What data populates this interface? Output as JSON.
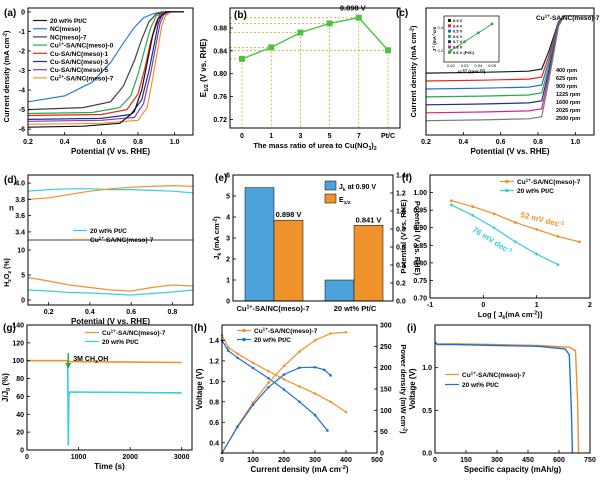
{
  "chart_data": [
    {
      "panel": "(a)",
      "type": "line",
      "xlabel": "Potential (V vs. RHE)",
      "ylabel": "Current density (mA cm",
      "ylabel_sup": "-2",
      "ylabel_tail": ")",
      "xlim": [
        0.2,
        1.1
      ],
      "ylim": [
        -6.3,
        0.2
      ],
      "xticks": [
        "0.2",
        "0.4",
        "0.6",
        "0.8",
        "1.0"
      ],
      "yticks": [
        "0",
        "-1",
        "-2",
        "-3",
        "-4",
        "-5",
        "-6"
      ],
      "legend": [
        {
          "name": "20 wt% Pt/C",
          "color": "#111111"
        },
        {
          "name": "NC(meso)",
          "color": "#2e7fd9"
        },
        {
          "name": "NC(meso)-7",
          "color": "#3f3f3f"
        },
        {
          "name": "Cu",
          "sup": "1+",
          "tail": "-SA/NC(meso)-0",
          "color": "#2aa84a"
        },
        {
          "name": "Cu-SA/NC(meso)-1",
          "color": "#e0281f"
        },
        {
          "name": "Cu-SA/NC(meso)-3",
          "color": "#1c2f8a"
        },
        {
          "name": "Cu-SA/NC(meso)-5",
          "color": "#8a3aa8"
        },
        {
          "name": "Cu",
          "sup": "1+",
          "tail": "-SA/NC(meso)-7",
          "color": "#f0922b"
        }
      ],
      "series": [
        {
          "color": "#2e7fd9",
          "x": [
            0.2,
            0.4,
            0.55,
            0.65,
            0.72,
            0.78,
            0.83,
            0.88,
            0.93,
            1.0,
            1.05
          ],
          "y": [
            -4.6,
            -4.3,
            -3.6,
            -2.6,
            -1.6,
            -0.8,
            -0.3,
            -0.1,
            0,
            0,
            0
          ]
        },
        {
          "color": "#3f3f3f",
          "x": [
            0.2,
            0.5,
            0.65,
            0.72,
            0.78,
            0.82,
            0.86,
            0.9,
            0.95,
            1.05
          ],
          "y": [
            -5.0,
            -4.9,
            -4.6,
            -3.8,
            -2.5,
            -1.4,
            -0.5,
            -0.1,
            0,
            0
          ]
        },
        {
          "color": "#2aa84a",
          "x": [
            0.2,
            0.55,
            0.7,
            0.76,
            0.8,
            0.84,
            0.87,
            0.9,
            0.95,
            1.05
          ],
          "y": [
            -5.2,
            -5.15,
            -4.9,
            -4.3,
            -3.2,
            -1.8,
            -0.8,
            -0.2,
            0,
            0
          ]
        },
        {
          "color": "#e0281f",
          "x": [
            0.2,
            0.6,
            0.74,
            0.8,
            0.84,
            0.87,
            0.9,
            0.92,
            0.96,
            1.05
          ],
          "y": [
            -5.3,
            -5.25,
            -5.0,
            -4.2,
            -2.8,
            -1.5,
            -0.5,
            -0.15,
            0,
            0
          ]
        },
        {
          "color": "#1c2f8a",
          "x": [
            0.2,
            0.6,
            0.76,
            0.82,
            0.86,
            0.89,
            0.91,
            0.93,
            0.97,
            1.05
          ],
          "y": [
            -5.5,
            -5.45,
            -5.25,
            -4.5,
            -3.0,
            -1.6,
            -0.6,
            -0.15,
            0,
            0
          ]
        },
        {
          "color": "#8a3aa8",
          "x": [
            0.2,
            0.6,
            0.78,
            0.83,
            0.87,
            0.9,
            0.92,
            0.94,
            0.97,
            1.05
          ],
          "y": [
            -5.6,
            -5.55,
            -5.4,
            -4.7,
            -3.1,
            -1.6,
            -0.6,
            -0.15,
            0,
            0
          ]
        },
        {
          "color": "#f0922b",
          "x": [
            0.2,
            0.6,
            0.8,
            0.85,
            0.88,
            0.91,
            0.93,
            0.95,
            0.98,
            1.05
          ],
          "y": [
            -5.75,
            -5.7,
            -5.55,
            -4.9,
            -3.4,
            -1.8,
            -0.7,
            -0.2,
            0,
            0
          ]
        },
        {
          "color": "#111111",
          "x": [
            0.2,
            0.5,
            0.7,
            0.78,
            0.82,
            0.85,
            0.88,
            0.91,
            0.95,
            1.05
          ],
          "y": [
            -5.9,
            -5.85,
            -5.7,
            -5.1,
            -4.0,
            -2.6,
            -1.2,
            -0.35,
            0,
            0
          ]
        }
      ]
    },
    {
      "panel": "(b)",
      "type": "line",
      "ylabel": "E",
      "ylabel_sub": "1/2",
      "ylabel_tail": " (V vs. RHE)",
      "xlabel": "The mass ratio of urea to Cu(NO",
      "xlabel_sub": "3",
      "xlabel_tail": ")",
      "xlabel_sub2": "2",
      "categories": [
        "0",
        "1",
        "3",
        "5",
        "7",
        "Pt/C"
      ],
      "values": [
        0.826,
        0.846,
        0.872,
        0.888,
        0.898,
        0.841
      ],
      "ylim": [
        0.705,
        0.915
      ],
      "yticks": [
        "0.72",
        "0.76",
        "0.80",
        "0.84",
        "0.88"
      ],
      "annotation": "0.898 V",
      "color": "#4cc43c"
    },
    {
      "panel": "(c)",
      "type": "line",
      "xlabel": "Potential (V vs. RHE)",
      "ylabel": "Current density (mA cm",
      "ylabel_sup": "-2",
      "ylabel_tail": ")",
      "xlim": [
        0.2,
        1.1
      ],
      "ylim": [
        -7.5,
        0.5
      ],
      "xticks": [
        "0.2",
        "0.4",
        "0.6",
        "0.8",
        "1.0"
      ],
      "title": "Cu",
      "title_sup": "1+",
      "title_tail": "-SA/NC(meso)-7",
      "rpm_labels": [
        "400 rpm",
        "625 rpm",
        "900 rpm",
        "1225 rpm",
        "1600 rpm",
        "2025 rpm",
        "2500 rpm"
      ],
      "plateaus": [
        -3.6,
        -4.1,
        -4.6,
        -5.1,
        -5.6,
        -6.1,
        -6.6
      ],
      "colors": [
        "#1a1a1a",
        "#e0281f",
        "#1f6fd1",
        "#2aa84a",
        "#1c2f8a",
        "#d02a8a",
        "#7a7a7a"
      ],
      "inset": {
        "xlabel": "ω",
        "xlabel_sup": "-1/2",
        "xlabel_tail": " (rpm",
        "xlabel_sup2": "-1/2",
        "xlabel_tail2": ")",
        "ylabel": "J",
        "ylabel_sup": "-1",
        "ylabel_tail": " (mA",
        "ylabel_sup2": "-1",
        "ylabel_tail2": "cm",
        "xticks": [
          "0.02",
          "0.03",
          "0.04",
          "0.05"
        ],
        "yticks": [
          "0.2",
          "0.4"
        ],
        "legend": [
          "0.3 V",
          "0.4 V",
          "0.5 V",
          "0.6 V",
          "0.7 V",
          "0.8 V",
          "0.6 V (Pt/C)"
        ]
      }
    },
    {
      "panel": "(d)",
      "type": "line",
      "xlabel": "Potential (V vs. RHE)",
      "ylabel_top": "n",
      "ylabel_bottom": "H",
      "ylabel_bottom_sub": "2",
      "ylabel_bottom_mid": "O",
      "ylabel_bottom_sub2": "2",
      "ylabel_bottom_tail": " (%)",
      "xticks": [
        "0.2",
        "0.4",
        "0.6",
        "0.8"
      ],
      "yticks_top": [
        "4.0",
        "3.8",
        "3.6",
        "3.4"
      ],
      "yticks_bottom": [
        "10",
        "5",
        "0"
      ],
      "xlim": [
        0.1,
        0.9
      ],
      "top_ylim": [
        3.3,
        4.1
      ],
      "bottom_ylim": [
        -1,
        12
      ],
      "legend": [
        {
          "name": "20 wt% Pt/C",
          "color": "#34d0dc"
        },
        {
          "name": "Cu",
          "sup": "1+",
          "tail": "-SA/NC(meso)-7",
          "color": "#f0922b"
        }
      ],
      "n_pt": {
        "x": [
          0.1,
          0.2,
          0.3,
          0.4,
          0.5,
          0.6,
          0.7,
          0.8,
          0.9
        ],
        "y": [
          3.9,
          3.92,
          3.93,
          3.93,
          3.92,
          3.92,
          3.91,
          3.9,
          3.88
        ]
      },
      "n_cu": {
        "x": [
          0.1,
          0.2,
          0.3,
          0.4,
          0.5,
          0.6,
          0.7,
          0.8,
          0.9
        ],
        "y": [
          3.8,
          3.82,
          3.86,
          3.9,
          3.93,
          3.95,
          3.96,
          3.97,
          3.96
        ]
      },
      "h_pt": {
        "x": [
          0.1,
          0.2,
          0.3,
          0.4,
          0.5,
          0.6,
          0.7,
          0.8,
          0.9
        ],
        "y": [
          2.0,
          1.8,
          1.5,
          1.4,
          1.2,
          1.0,
          1.3,
          1.6,
          2.0
        ]
      },
      "h_cu": {
        "x": [
          0.1,
          0.2,
          0.3,
          0.4,
          0.5,
          0.6,
          0.7,
          0.8,
          0.9
        ],
        "y": [
          4.5,
          3.8,
          3.0,
          2.5,
          2.0,
          1.8,
          2.5,
          3.0,
          2.8
        ]
      }
    },
    {
      "panel": "(e)",
      "type": "bar",
      "categories": [
        "Cu",
        "20 wt% Pt/C"
      ],
      "category_sup": "1+",
      "category_tail": "-SA/NC(meso)-7",
      "series": [
        {
          "name": "J",
          "name_sub": "k",
          "name_tail": " at 0.90 V",
          "color": "#4da3d9",
          "values": [
            5.4,
            1.0
          ]
        },
        {
          "name": "E",
          "name_sub": "1/2",
          "color": "#f0922b",
          "values": [
            0.898,
            0.841
          ]
        }
      ],
      "ylabel_left": "J",
      "ylabel_left_sub": "k",
      "ylabel_left_tail": " (mA cm",
      "ylabel_left_sup": "-2",
      "ylabel_left_tail2": ")",
      "ylabel_right": "Potential (V vs. RHE)",
      "ylim_left": [
        0,
        6
      ],
      "ylim_right": [
        0,
        1.4
      ],
      "yticks_left": [
        "0",
        "1",
        "2",
        "3",
        "4",
        "5",
        "6"
      ],
      "yticks_right": [
        "0.0",
        "0.2",
        "0.4",
        "0.6",
        "0.8",
        "1.0",
        "1.2",
        "1.4"
      ],
      "annotations": [
        "0.898 V",
        "0.841 V"
      ]
    },
    {
      "panel": "(f)",
      "type": "line",
      "xlabel": "Log [ J",
      "xlabel_sub": "k",
      "xlabel_tail": "(mA cm",
      "xlabel_sup": "-2",
      "xlabel_tail2": ")]",
      "ylabel": "Potential (V vs. RHE)",
      "xlim": [
        -1,
        2
      ],
      "ylim": [
        0.7,
        1.05
      ],
      "xticks": [
        "-1",
        "0",
        "1",
        "2"
      ],
      "yticks": [
        "0.70",
        "0.75",
        "0.80",
        "0.85",
        "0.90",
        "0.95",
        "1.00"
      ],
      "legend": [
        {
          "name": "Cu",
          "sup": "1+",
          "tail": "-SA/NC(meso)-7",
          "color": "#f0922b"
        },
        {
          "name": "20 wt% Pt/C",
          "color": "#34d0dc"
        }
      ],
      "series": [
        {
          "color": "#f0922b",
          "x": [
            -0.6,
            -0.2,
            0.2,
            0.6,
            1.0,
            1.4,
            1.8
          ],
          "y": [
            0.977,
            0.96,
            0.94,
            0.915,
            0.895,
            0.875,
            0.86
          ]
        },
        {
          "color": "#34d0dc",
          "x": [
            -0.6,
            -0.2,
            0.2,
            0.6,
            1.0,
            1.4
          ],
          "y": [
            0.965,
            0.935,
            0.9,
            0.86,
            0.825,
            0.795
          ]
        }
      ],
      "annotations": [
        {
          "text": "52 mV dec",
          "sup": "-1",
          "color": "#f0922b"
        },
        {
          "text": "76 mV dec",
          "sup": "-1",
          "color": "#34d0dc"
        }
      ]
    },
    {
      "panel": "(g)",
      "type": "line",
      "xlabel": "Time (s)",
      "ylabel": "J/J",
      "ylabel_sub": "0",
      "ylabel_tail": " (%)",
      "xlim": [
        0,
        3200
      ],
      "ylim": [
        0,
        140
      ],
      "xticks": [
        "0",
        "1000",
        "2000",
        "3000"
      ],
      "yticks": [
        "0",
        "20",
        "40",
        "60",
        "80",
        "100",
        "120",
        "140"
      ],
      "legend": [
        {
          "name": "Cu",
          "sup": "1+",
          "tail": "-SA/NC(meso)-7",
          "color": "#f0922b"
        },
        {
          "name": "20 wt% Pt/C",
          "color": "#34d0dc"
        }
      ],
      "annotation": "3M CH",
      "annotation_sub": "3",
      "annotation_tail": "OH",
      "inject_time": 800,
      "cu": {
        "x": [
          0,
          800,
          820,
          3000
        ],
        "y": [
          100,
          100,
          99,
          98
        ]
      },
      "pt": {
        "x": [
          0,
          790,
          800,
          810,
          830,
          3000
        ],
        "y": [
          100,
          100,
          5,
          60,
          65,
          64
        ]
      }
    },
    {
      "panel": "(h)",
      "type": "line",
      "xlabel": "Current density (mA cm",
      "xlabel_sup": "-2",
      "xlabel_tail": ")",
      "ylabel_left": "Voltage (V)",
      "ylabel_right": "Power density (mW cm",
      "ylabel_right_sup": "-2",
      "ylabel_right_tail": ")",
      "xlim": [
        0,
        500
      ],
      "ylim_left": [
        0.3,
        1.55
      ],
      "ylim_right": [
        0,
        300
      ],
      "xticks": [
        "0",
        "100",
        "200",
        "300",
        "400",
        "500"
      ],
      "yticks_left": [
        "0.4",
        "0.6",
        "0.8",
        "1.0",
        "1.2",
        "1.4"
      ],
      "yticks_right": [
        "0",
        "50",
        "100",
        "150",
        "200",
        "250",
        "300"
      ],
      "legend": [
        {
          "name": "Cu",
          "sup": "1+",
          "tail": "-SA/NC(meso)-7",
          "color": "#f0922b"
        },
        {
          "name": "20 wt% Pt/C",
          "color": "#1f6fd1"
        }
      ],
      "v_cu": {
        "x": [
          0,
          20,
          50,
          100,
          150,
          200,
          250,
          300,
          350,
          400
        ],
        "y": [
          1.45,
          1.33,
          1.27,
          1.18,
          1.1,
          1.02,
          0.95,
          0.88,
          0.8,
          0.7
        ]
      },
      "v_pt": {
        "x": [
          0,
          20,
          50,
          100,
          150,
          200,
          250,
          300,
          340
        ],
        "y": [
          1.4,
          1.3,
          1.23,
          1.13,
          1.03,
          0.92,
          0.8,
          0.67,
          0.52
        ]
      },
      "p_cu": {
        "x": [
          0,
          50,
          100,
          150,
          200,
          250,
          300,
          350,
          400
        ],
        "y": [
          0,
          63,
          118,
          165,
          204,
          238,
          264,
          280,
          283
        ]
      },
      "p_pt": {
        "x": [
          0,
          50,
          100,
          150,
          200,
          250,
          300,
          330,
          350
        ],
        "y": [
          0,
          61,
          113,
          154,
          184,
          200,
          201,
          195,
          182
        ]
      }
    },
    {
      "panel": "(i)",
      "type": "line",
      "xlabel": "Specific capacity (mAh/g)",
      "ylabel": "Voltage (V)",
      "xlim": [
        0,
        750
      ],
      "ylim": [
        0,
        1.5
      ],
      "xticks": [
        "0",
        "150",
        "300",
        "450",
        "600",
        "750"
      ],
      "yticks": [
        "0.0",
        "0.5",
        "1.0"
      ],
      "legend": [
        {
          "name": "Cu",
          "sup": "1+",
          "tail": "-SA/NC(meso)-7",
          "color": "#f0922b"
        },
        {
          "name": "20 wt% Pt/C",
          "color": "#1f6fd1"
        }
      ],
      "cu": {
        "x": [
          0,
          10,
          100,
          300,
          500,
          650,
          680,
          690,
          695
        ],
        "y": [
          1.3,
          1.28,
          1.28,
          1.27,
          1.26,
          1.24,
          1.2,
          0.6,
          0
        ]
      },
      "pt": {
        "x": [
          0,
          10,
          100,
          300,
          500,
          630,
          650,
          660,
          665
        ],
        "y": [
          1.3,
          1.27,
          1.27,
          1.26,
          1.25,
          1.22,
          1.15,
          0.5,
          0
        ]
      }
    }
  ]
}
